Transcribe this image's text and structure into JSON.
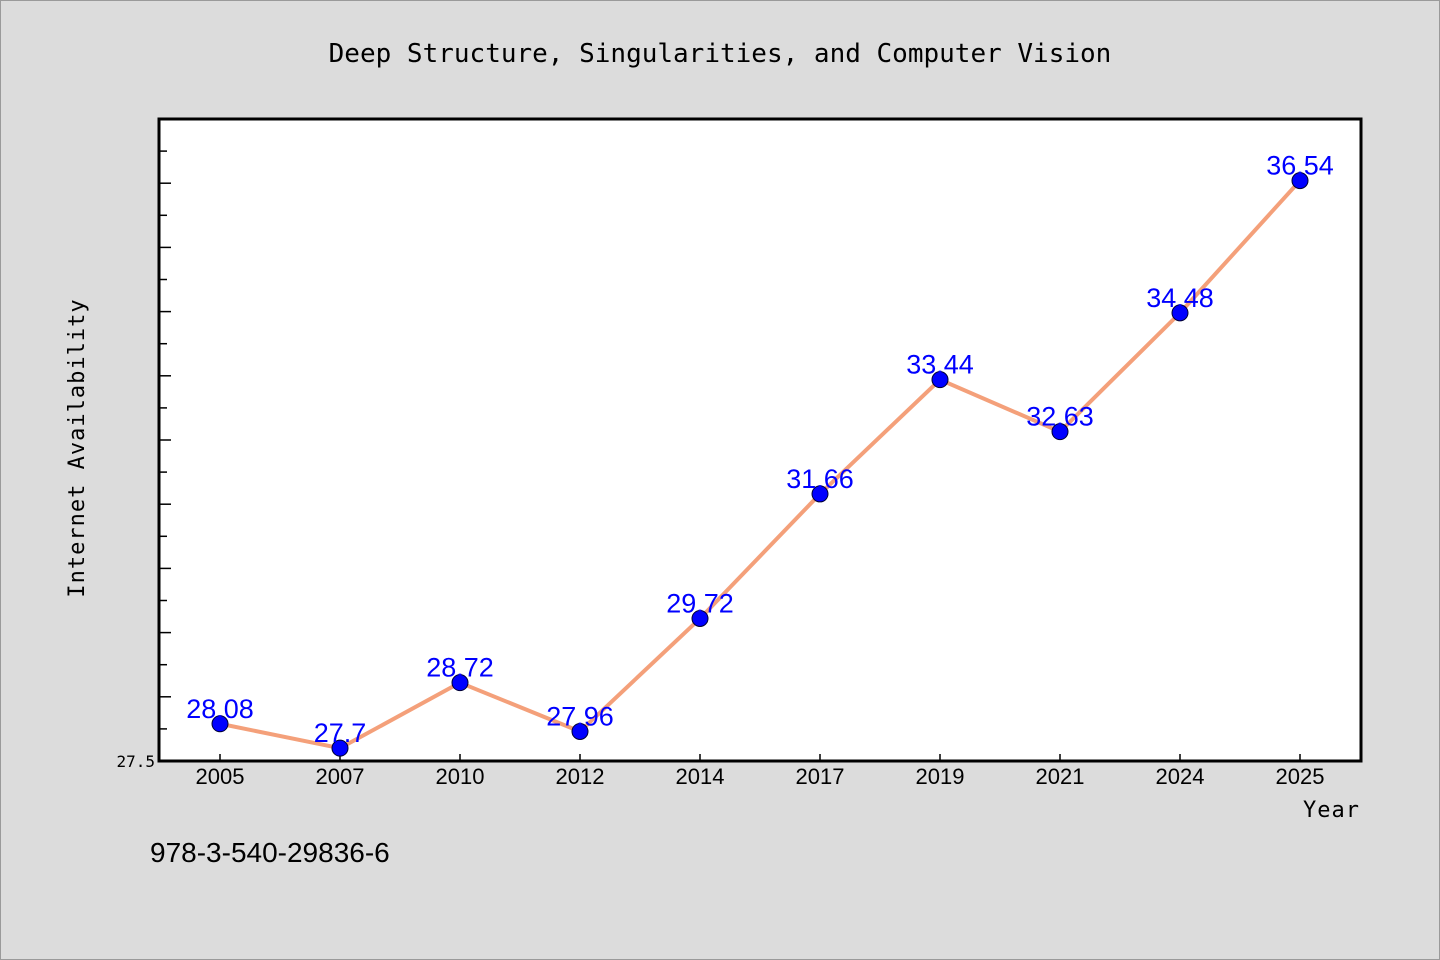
{
  "chart_data": {
    "type": "line",
    "title": "Deep Structure, Singularities, and Computer Vision",
    "xlabel": "Year",
    "ylabel": "Internet Availability",
    "categories": [
      "2005",
      "2007",
      "2010",
      "2012",
      "2014",
      "2017",
      "2019",
      "2021",
      "2024",
      "2025"
    ],
    "series": [
      {
        "values": [
          28.08,
          27.7,
          28.72,
          27.96,
          29.72,
          31.66,
          33.44,
          32.63,
          34.48,
          36.54
        ],
        "value_labels": [
          "28.08",
          "27.7",
          "28.72",
          "27.96",
          "29.72",
          "31.66",
          "33.44",
          "32.63",
          "34.48",
          "36.54"
        ]
      }
    ],
    "ylim": [
      27.5,
      37.5
    ],
    "yticks_labeled": [
      "27.5"
    ],
    "grid": false,
    "legend": "none"
  },
  "footer": {
    "isbn": "978-3-540-29836-6"
  },
  "colors": {
    "background": "#dcdcdc",
    "plot_background": "#ffffff",
    "line": "#f4a07a",
    "marker": "#0000ff",
    "data_label": "#0000ff"
  }
}
